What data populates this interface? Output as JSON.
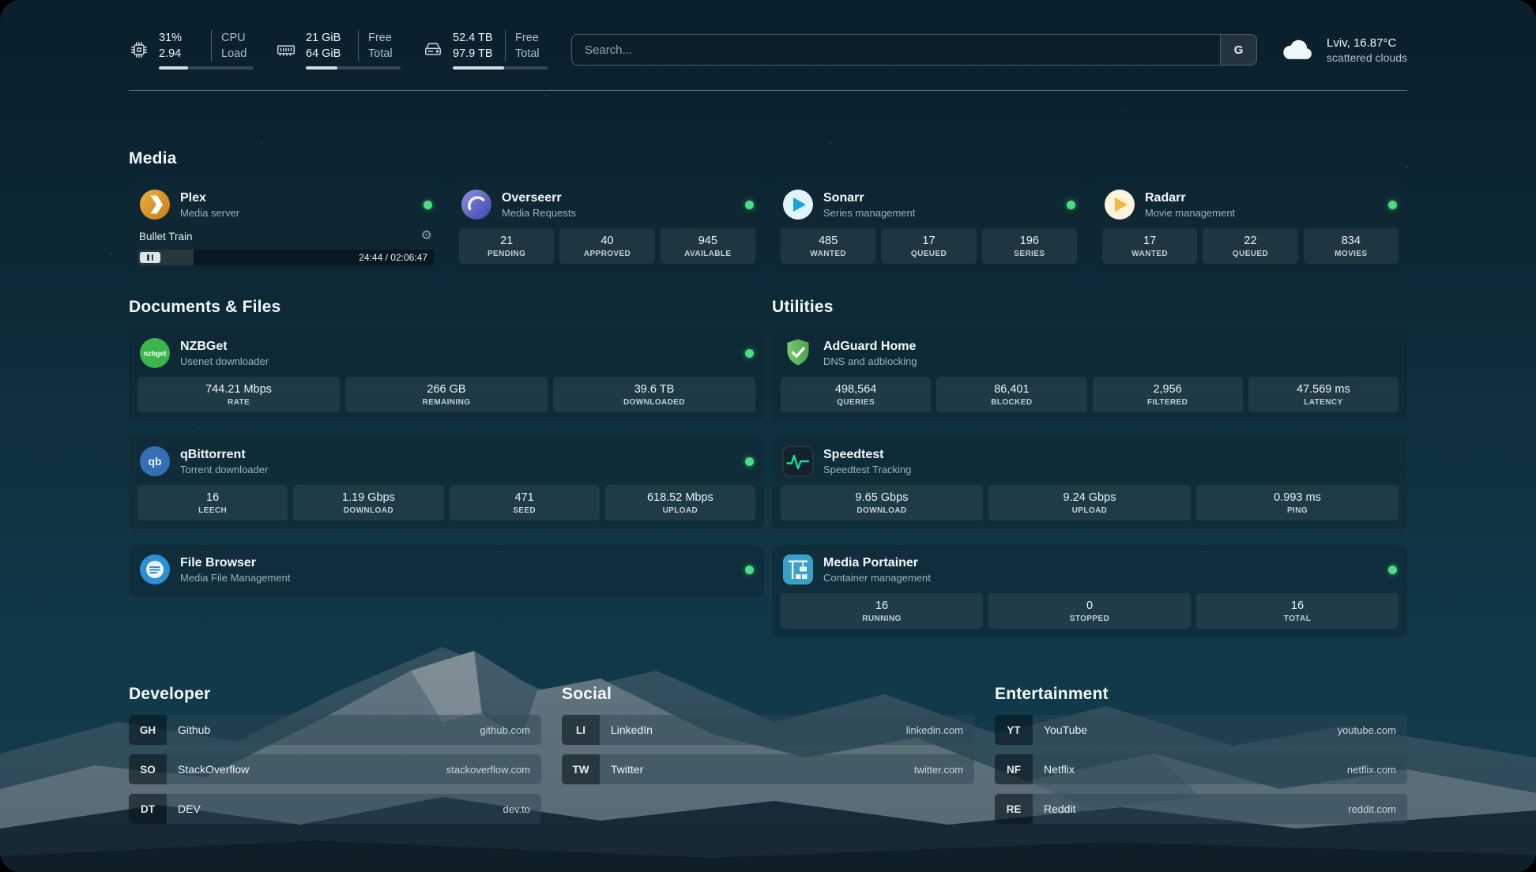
{
  "topbar": {
    "cpu": {
      "value": "31%",
      "sub": "2.94",
      "label_top": "CPU",
      "label_bottom": "Load",
      "percent": 31
    },
    "memory": {
      "value": "21 GiB",
      "sub": "64 GiB",
      "label_top": "Free",
      "label_bottom": "Total",
      "percent": 33
    },
    "disk": {
      "value": "52.4 TB",
      "sub": "97.9 TB",
      "label_top": "Free",
      "label_bottom": "Total",
      "percent": 54
    },
    "search": {
      "placeholder": "Search...",
      "button_label": "G"
    },
    "weather": {
      "location": "Lviv, 16.87°C",
      "condition": "scattered clouds"
    }
  },
  "media": {
    "title": "Media",
    "plex": {
      "name": "Plex",
      "desc": "Media server",
      "now_playing": "Bullet Train",
      "time": "24:44 / 02:06:47",
      "progress_percent": 19
    },
    "overseerr": {
      "name": "Overseerr",
      "desc": "Media Requests",
      "stats": [
        {
          "value": "21",
          "label": "PENDING"
        },
        {
          "value": "40",
          "label": "APPROVED"
        },
        {
          "value": "945",
          "label": "AVAILABLE"
        }
      ]
    },
    "sonarr": {
      "name": "Sonarr",
      "desc": "Series management",
      "stats": [
        {
          "value": "485",
          "label": "WANTED"
        },
        {
          "value": "17",
          "label": "QUEUED"
        },
        {
          "value": "196",
          "label": "SERIES"
        }
      ]
    },
    "radarr": {
      "name": "Radarr",
      "desc": "Movie management",
      "stats": [
        {
          "value": "17",
          "label": "WANTED"
        },
        {
          "value": "22",
          "label": "QUEUED"
        },
        {
          "value": "834",
          "label": "MOVIES"
        }
      ]
    }
  },
  "documents": {
    "title": "Documents & Files",
    "nzbget": {
      "name": "NZBGet",
      "desc": "Usenet downloader",
      "stats": [
        {
          "value": "744.21 Mbps",
          "label": "RATE"
        },
        {
          "value": "266 GB",
          "label": "REMAINING"
        },
        {
          "value": "39.6 TB",
          "label": "DOWNLOADED"
        }
      ]
    },
    "qbittorrent": {
      "name": "qBittorrent",
      "desc": "Torrent downloader",
      "stats": [
        {
          "value": "16",
          "label": "LEECH"
        },
        {
          "value": "1.19 Gbps",
          "label": "DOWNLOAD"
        },
        {
          "value": "471",
          "label": "SEED"
        },
        {
          "value": "618.52 Mbps",
          "label": "UPLOAD"
        }
      ]
    },
    "filebrowser": {
      "name": "File Browser",
      "desc": "Media File Management"
    }
  },
  "utilities": {
    "title": "Utilities",
    "adguard": {
      "name": "AdGuard Home",
      "desc": "DNS and adblocking",
      "stats": [
        {
          "value": "498,564",
          "label": "QUERIES"
        },
        {
          "value": "86,401",
          "label": "BLOCKED"
        },
        {
          "value": "2,956",
          "label": "FILTERED"
        },
        {
          "value": "47.569 ms",
          "label": "LATENCY"
        }
      ]
    },
    "speedtest": {
      "name": "Speedtest",
      "desc": "Speedtest Tracking",
      "stats": [
        {
          "value": "9.65 Gbps",
          "label": "DOWNLOAD"
        },
        {
          "value": "9.24 Gbps",
          "label": "UPLOAD"
        },
        {
          "value": "0.993 ms",
          "label": "PING"
        }
      ]
    },
    "portainer": {
      "name": "Media Portainer",
      "desc": "Container management",
      "stats": [
        {
          "value": "16",
          "label": "RUNNING"
        },
        {
          "value": "0",
          "label": "STOPPED"
        },
        {
          "value": "16",
          "label": "TOTAL"
        }
      ]
    }
  },
  "bookmarks": {
    "developer": {
      "title": "Developer",
      "items": [
        {
          "abbr": "GH",
          "name": "Github",
          "url": "github.com"
        },
        {
          "abbr": "SO",
          "name": "StackOverflow",
          "url": "stackoverflow.com"
        },
        {
          "abbr": "DT",
          "name": "DEV",
          "url": "dev.to"
        }
      ]
    },
    "social": {
      "title": "Social",
      "items": [
        {
          "abbr": "LI",
          "name": "LinkedIn",
          "url": "linkedin.com"
        },
        {
          "abbr": "TW",
          "name": "Twitter",
          "url": "twitter.com"
        }
      ]
    },
    "entertainment": {
      "title": "Entertainment",
      "items": [
        {
          "abbr": "YT",
          "name": "YouTube",
          "url": "youtube.com"
        },
        {
          "abbr": "NF",
          "name": "Netflix",
          "url": "netflix.com"
        },
        {
          "abbr": "RE",
          "name": "Reddit",
          "url": "reddit.com"
        }
      ]
    }
  },
  "colors": {
    "status_online": "#4ade80",
    "plex_amber": "#e5a00d",
    "overseerr_purple": "#5a5fc7",
    "sonarr_blue": "#19a4dd",
    "radarr_yellow": "#f5b53f",
    "nzbget_green": "#3cb54a",
    "qbittorrent_blue": "#356fb5",
    "filebrowser_blue": "#2d8fd5",
    "adguard_green": "#5fb65d",
    "speedtest_green": "#16dfa2",
    "portainer_blue": "#3aa0c6"
  }
}
